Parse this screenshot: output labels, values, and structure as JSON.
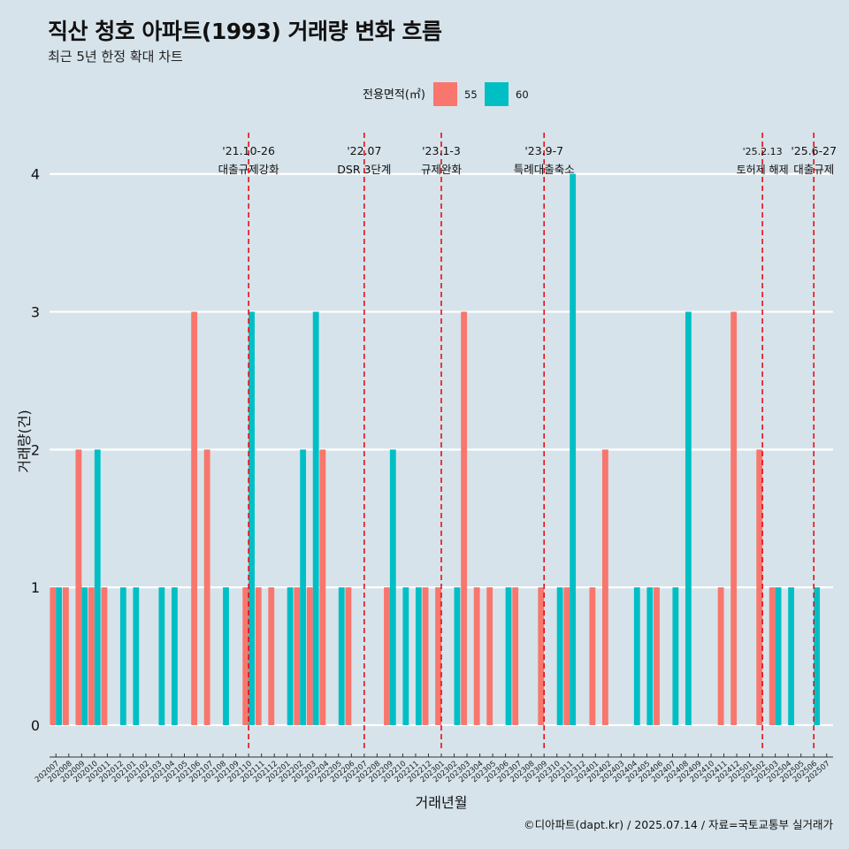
{
  "title": "직산 청호 아파트(1993) 거래량 변화 흐름",
  "subtitle": "최근 5년 한정 확대 차트",
  "caption": "©디아파트(dapt.kr) / 2025.07.14 / 자료=국토교통부 실거래가",
  "colors": {
    "55": "#f8766d",
    "60": "#00bfc4",
    "background": "#d6e3ea",
    "event_line": "#e8000b"
  },
  "chart_data": {
    "type": "bar",
    "xlabel": "거래년월",
    "ylabel": "거래량(건)",
    "ylim": [
      -0.18,
      4.3
    ],
    "yticks": [
      0,
      1,
      2,
      3,
      4
    ],
    "legend": {
      "title": "전용면적(㎡)",
      "position": "top",
      "entries": [
        "55",
        "60"
      ]
    },
    "categories": [
      "202007",
      "202008",
      "202009",
      "202010",
      "202011",
      "202012",
      "202101",
      "202102",
      "202103",
      "202104",
      "202105",
      "202106",
      "202107",
      "202108",
      "202109",
      "202110",
      "202111",
      "202112",
      "202201",
      "202202",
      "202203",
      "202204",
      "202205",
      "202206",
      "202207",
      "202208",
      "202209",
      "202210",
      "202211",
      "202212",
      "202301",
      "202302",
      "202303",
      "202304",
      "202305",
      "202306",
      "202307",
      "202308",
      "202309",
      "202310",
      "202311",
      "202312",
      "202401",
      "202402",
      "202403",
      "202404",
      "202405",
      "202406",
      "202407",
      "202408",
      "202409",
      "202410",
      "202411",
      "202412",
      "202501",
      "202502",
      "202503",
      "202504",
      "202505",
      "202506",
      "202507"
    ],
    "series": [
      {
        "name": "55",
        "values": [
          1,
          1,
          2,
          1,
          1,
          0,
          0,
          0,
          0,
          0,
          0,
          3,
          2,
          0,
          0,
          1,
          1,
          1,
          0,
          1,
          1,
          2,
          0,
          1,
          0,
          0,
          1,
          0,
          0,
          1,
          1,
          0,
          3,
          1,
          1,
          0,
          1,
          0,
          1,
          0,
          1,
          0,
          1,
          2,
          0,
          0,
          0,
          1,
          0,
          0,
          0,
          0,
          1,
          3,
          0,
          2,
          1,
          0,
          0,
          0,
          0
        ]
      },
      {
        "name": "60",
        "values": [
          1,
          0,
          1,
          2,
          0,
          1,
          1,
          0,
          1,
          1,
          0,
          0,
          0,
          1,
          0,
          3,
          0,
          0,
          1,
          2,
          3,
          0,
          1,
          0,
          0,
          0,
          2,
          1,
          1,
          0,
          0,
          1,
          0,
          0,
          0,
          1,
          0,
          0,
          0,
          1,
          4,
          0,
          0,
          0,
          0,
          1,
          1,
          0,
          1,
          3,
          0,
          0,
          0,
          0,
          0,
          0,
          1,
          1,
          0,
          1,
          0
        ]
      }
    ],
    "events": [
      {
        "category": "202110",
        "offset": 0.0,
        "date": "'21.10-26",
        "label": "대출규제강화"
      },
      {
        "category": "202207",
        "offset": 0.0,
        "date": "'22.07",
        "label": "DSR 3단계"
      },
      {
        "category": "202301",
        "offset": 0.0,
        "date": "'23.1-3",
        "label": "규제완화"
      },
      {
        "category": "202309",
        "offset": 0.0,
        "date": "'23.9-7",
        "label": "특례대출축소"
      },
      {
        "category": "202502",
        "offset": 0.0,
        "date": "'25.2.13",
        "label": "토허제 해제"
      },
      {
        "category": "202506",
        "offset": 0.0,
        "date": "'25.6-27",
        "label": "대출규제"
      }
    ]
  }
}
